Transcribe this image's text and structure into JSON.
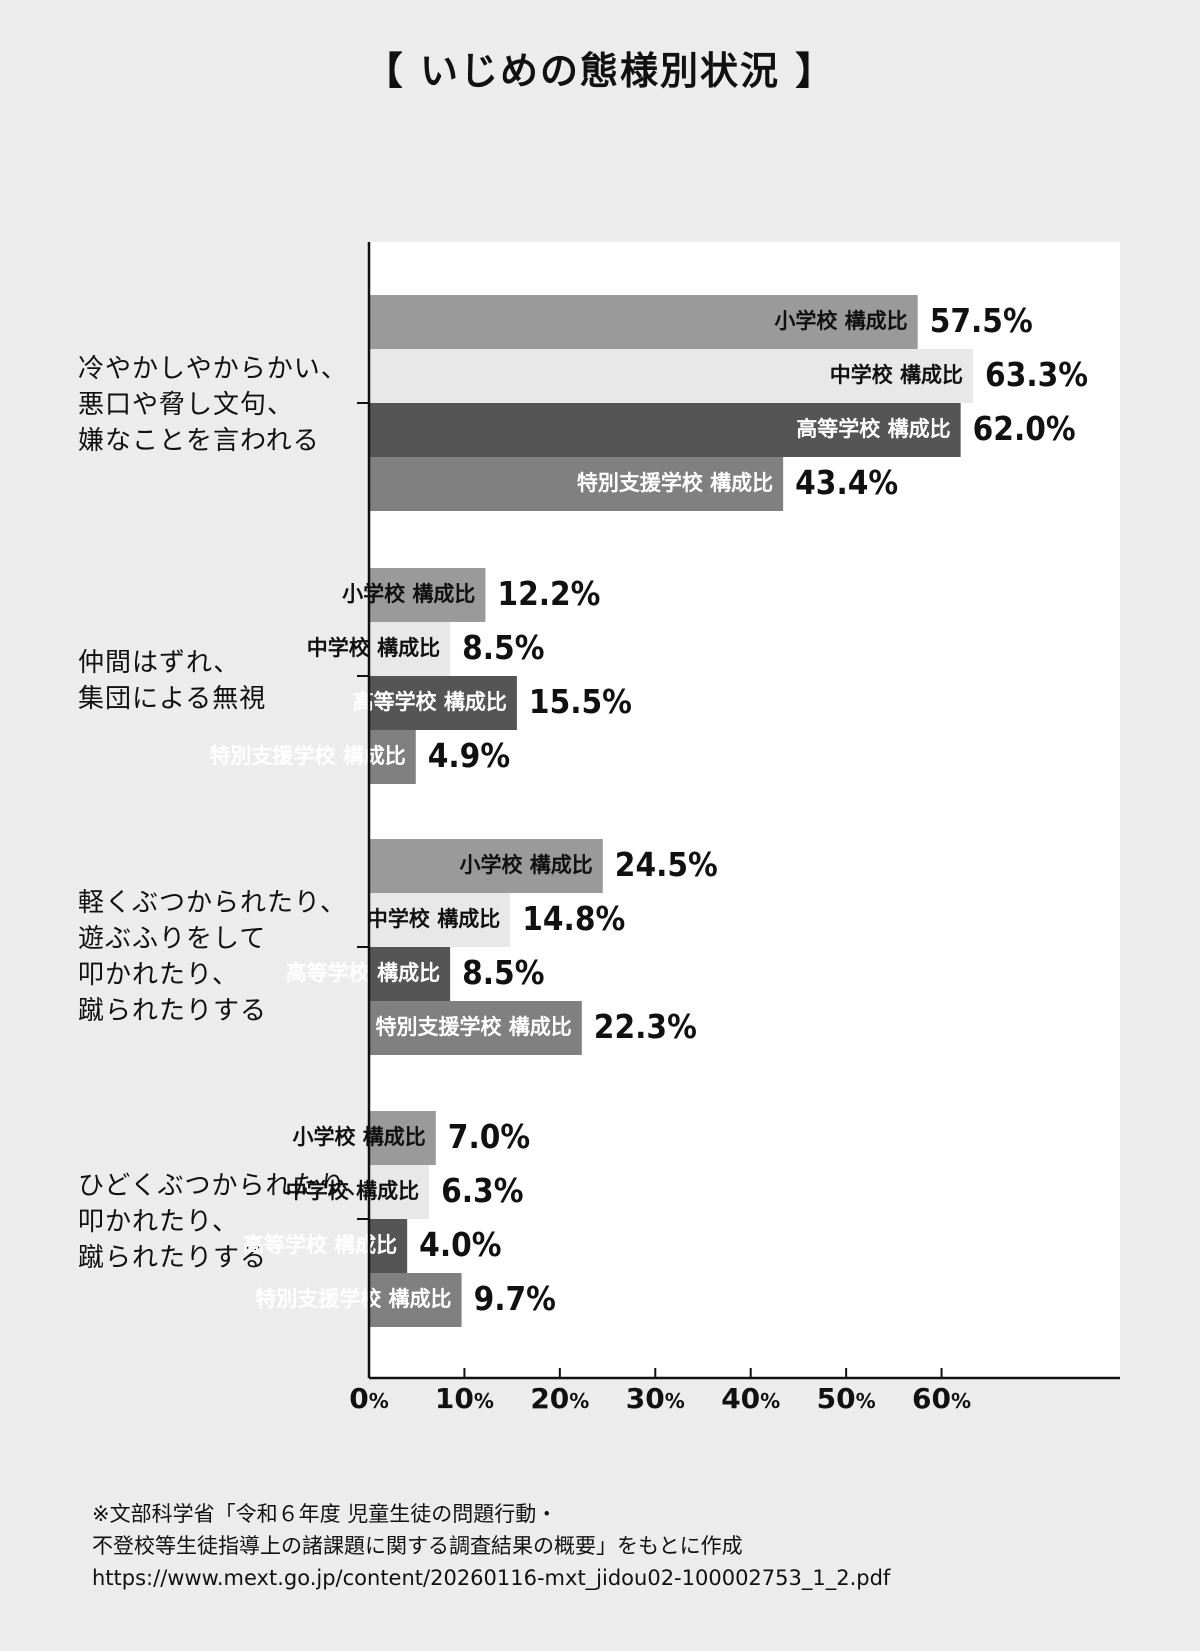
{
  "title": {
    "open": "【",
    "text": "いじめの態様別状況",
    "close": "】"
  },
  "chart_data": {
    "type": "bar",
    "orientation": "horizontal",
    "title": "いじめの態様別状況",
    "categories": [
      "冷やかしやからかい、\n悪口や脅し文句、\n嫌なことを言われる",
      "仲間はずれ、\n集団による無視",
      "軽くぶつかられたり、\n遊ぶふりをして\n叩かれたり、\n蹴られたりする",
      "ひどくぶつかられたり、\n叩かれたり、\n蹴られたりする"
    ],
    "series": [
      {
        "name": "小学校 構成比",
        "color": "#9a9a9a",
        "values": [
          57.5,
          12.2,
          24.5,
          7.0
        ]
      },
      {
        "name": "中学校 構成比",
        "color": "#e8e8e8",
        "values": [
          63.3,
          8.5,
          14.8,
          6.3
        ]
      },
      {
        "name": "高等学校 構成比",
        "color": "#555555",
        "values": [
          62.0,
          15.5,
          8.5,
          4.0
        ]
      },
      {
        "name": "特別支援学校 構成比",
        "color": "#808080",
        "values": [
          43.4,
          4.9,
          22.3,
          9.7
        ]
      }
    ],
    "value_labels": [
      [
        "57.5",
        "63.3",
        "62.0",
        "43.4"
      ],
      [
        "12.2",
        "8.5",
        "15.5",
        "4.9"
      ],
      [
        "24.5",
        "14.8",
        "8.5",
        "22.3"
      ],
      [
        "7.0",
        "6.3",
        "4.0",
        "9.7"
      ]
    ],
    "label_inside_bar": [
      true,
      true,
      true,
      true
    ],
    "x_ticks": [
      {
        "num": "0",
        "unit": "%"
      },
      {
        "num": "10",
        "unit": "%"
      },
      {
        "num": "20",
        "unit": "%"
      },
      {
        "num": "30",
        "unit": "%"
      },
      {
        "num": "40",
        "unit": "%"
      },
      {
        "num": "50",
        "unit": "%"
      },
      {
        "num": "60",
        "unit": "%"
      }
    ],
    "xlim": [
      0,
      78.7
    ],
    "unit": "%",
    "grid": false
  },
  "source": {
    "line1": "※文部科学省「令和６年度 児童生徒の問題行動・",
    "line2": "不登校等生徒指導上の諸課題に関する調査結果の概要」をもとに作成",
    "line3": "https://www.mext.go.jp/content/20260116-mxt_jidou02-100002753_1_2.pdf"
  }
}
